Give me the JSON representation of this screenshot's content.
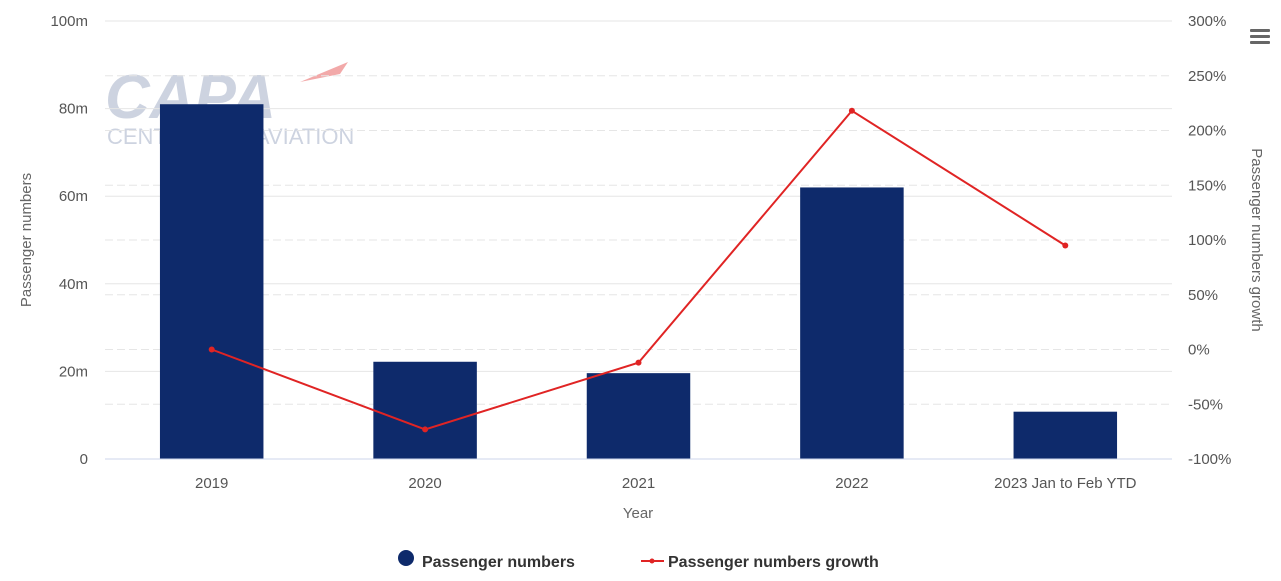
{
  "watermark": {
    "brand": "CAPA",
    "subtitle": "CENTRE FOR AVIATION"
  },
  "colors": {
    "bar": "#0e2a6b",
    "line": "#e02424",
    "grid": "#e6e6e6",
    "watermark": "#cdd3e0",
    "watermark_accent": "#f2a9a9"
  },
  "menu_icon": "hamburger-menu-icon",
  "chart_data": {
    "type": "bar",
    "categories": [
      "2019",
      "2020",
      "2021",
      "2022",
      "2023 Jan to Feb YTD"
    ],
    "series": [
      {
        "name": "Passenger numbers",
        "type": "bar",
        "axis": "left",
        "values": [
          81,
          22.2,
          19.6,
          62,
          10.8
        ]
      },
      {
        "name": "Passenger numbers growth",
        "type": "line",
        "axis": "right",
        "values": [
          0,
          -73,
          -12,
          218,
          95
        ]
      }
    ],
    "xlabel": "Year",
    "ylabel": "Passenger numbers",
    "y2label": "Passenger numbers growth",
    "ylim": [
      0,
      100
    ],
    "y2lim": [
      -100,
      300
    ],
    "yticks": [
      0,
      20,
      40,
      60,
      80,
      100
    ],
    "ytick_labels": [
      "0",
      "20m",
      "40m",
      "60m",
      "80m",
      "100m"
    ],
    "y2ticks": [
      -100,
      -50,
      0,
      50,
      100,
      150,
      200,
      250,
      300
    ],
    "y2tick_labels": [
      "-100%",
      "-50%",
      "0%",
      "50%",
      "100%",
      "150%",
      "200%",
      "250%",
      "300%"
    ],
    "grid": true,
    "legend": "bottom-center"
  }
}
